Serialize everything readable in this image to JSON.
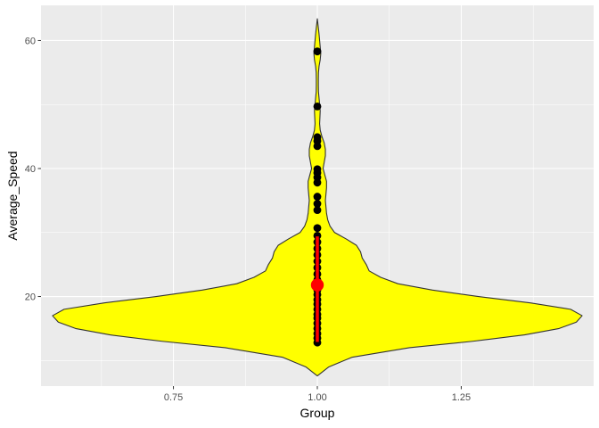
{
  "chart_data": {
    "type": "violin",
    "xlabel": "Group",
    "ylabel": "Average_Speed",
    "x_ticks": [
      0.75,
      1.0,
      1.25
    ],
    "x_tick_labels": [
      "0.75",
      "1.00",
      "1.25"
    ],
    "y_ticks": [
      20,
      40,
      60
    ],
    "y_tick_labels": [
      "20",
      "40",
      "60"
    ],
    "xlim": [
      0.52,
      1.48
    ],
    "ylim": [
      6.0,
      65.5
    ],
    "grid": true,
    "violin": {
      "x": 1.0,
      "fill": "#ffff00",
      "stroke": "#333333",
      "half_width_profile": [
        [
          7.6,
          0.0
        ],
        [
          9.0,
          0.02
        ],
        [
          10.5,
          0.06
        ],
        [
          12.0,
          0.16
        ],
        [
          13.0,
          0.27
        ],
        [
          14.0,
          0.36
        ],
        [
          15.0,
          0.42
        ],
        [
          16.0,
          0.45
        ],
        [
          17.0,
          0.46
        ],
        [
          18.0,
          0.44
        ],
        [
          19.0,
          0.37
        ],
        [
          20.0,
          0.28
        ],
        [
          21.0,
          0.2
        ],
        [
          22.0,
          0.14
        ],
        [
          23.0,
          0.11
        ],
        [
          24.0,
          0.09
        ],
        [
          25.0,
          0.085
        ],
        [
          26.0,
          0.078
        ],
        [
          27.0,
          0.075
        ],
        [
          28.0,
          0.068
        ],
        [
          29.0,
          0.05
        ],
        [
          30.0,
          0.03
        ],
        [
          31.0,
          0.022
        ],
        [
          32.0,
          0.018
        ],
        [
          33.0,
          0.016
        ],
        [
          34.0,
          0.015
        ],
        [
          35.0,
          0.014
        ],
        [
          36.0,
          0.015
        ],
        [
          37.0,
          0.016
        ],
        [
          38.0,
          0.016
        ],
        [
          39.0,
          0.013
        ],
        [
          40.0,
          0.01
        ],
        [
          41.0,
          0.012
        ],
        [
          42.0,
          0.014
        ],
        [
          43.0,
          0.014
        ],
        [
          44.0,
          0.012
        ],
        [
          45.0,
          0.008
        ],
        [
          46.0,
          0.005
        ],
        [
          47.0,
          0.004
        ],
        [
          48.0,
          0.0045
        ],
        [
          49.0,
          0.005
        ],
        [
          50.0,
          0.004
        ],
        [
          51.0,
          0.003
        ],
        [
          52.0,
          0.002
        ],
        [
          53.0,
          0.0018
        ],
        [
          54.0,
          0.0018
        ],
        [
          55.0,
          0.002
        ],
        [
          56.0,
          0.003
        ],
        [
          57.0,
          0.005
        ],
        [
          58.0,
          0.006
        ],
        [
          59.0,
          0.005
        ],
        [
          60.0,
          0.004
        ],
        [
          61.0,
          0.003
        ],
        [
          62.0,
          0.0018
        ],
        [
          63.4,
          0.0
        ]
      ]
    },
    "points": {
      "x": 1.0,
      "color": "#000000",
      "y": [
        12.8,
        13.5,
        14.2,
        15.0,
        15.8,
        16.6,
        17.2,
        18.0,
        18.8,
        19.5,
        20.3,
        21.0,
        21.8,
        22.6,
        23.5,
        24.5,
        25.5,
        26.5,
        27.5,
        28.5,
        29.5,
        30.7,
        33.5,
        34.5,
        35.6,
        37.8,
        38.6,
        39.3,
        39.9,
        43.5,
        44.3,
        44.9,
        49.7,
        58.3
      ]
    },
    "summary": {
      "x": 1.0,
      "mean": 21.8,
      "range": [
        12.9,
        29.4
      ],
      "color": "#ff0000"
    }
  }
}
